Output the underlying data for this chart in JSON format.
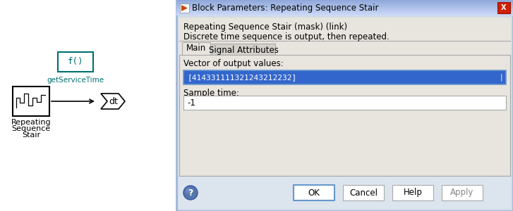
{
  "dialog_title": "Block Parameters: Repeating Sequence Stair",
  "dialog_subtitle1": "Repeating Sequence Stair (mask) (link)",
  "dialog_subtitle2": "Discrete time sequence is output, then repeated.",
  "tab_main": "Main",
  "tab_signal": "Signal Attributes",
  "label_vector": "Vector of output values:",
  "vector_full_value": "[41433111132124321 2232]",
  "label_sample": "Sample time:",
  "sample_value": "-1",
  "btn_ok": "OK",
  "btn_cancel": "Cancel",
  "btn_help": "Help",
  "btn_apply": "Apply",
  "block_label": "f()",
  "block_sublabel": "getServiceTime",
  "seq_label1": "Repeating",
  "seq_label2": "Sequence",
  "seq_label3": "Stair",
  "dt_label": "dt",
  "teal_color": "#007070",
  "titlebar_top": "#a8c4e8",
  "titlebar_mid": "#7aaad4",
  "titlebar_bot": "#5a8abf",
  "dialog_face": "#e8e4e0",
  "content_face": "#e8e4e0",
  "tab_panel_face": "#e8e4e0",
  "field_sel_bg": "#3366cc",
  "field_sel_fg": "#ffffff",
  "field_bg": "#ffffff",
  "field_border": "#6699cc",
  "btn_border_ok": "#6699cc",
  "btn_border": "#aaaaaa",
  "help_icon_color": "#5577aa",
  "close_btn_color": "#cc2200",
  "icon_orange": "#cc4400",
  "vector_text": "[414331111321243212232]"
}
